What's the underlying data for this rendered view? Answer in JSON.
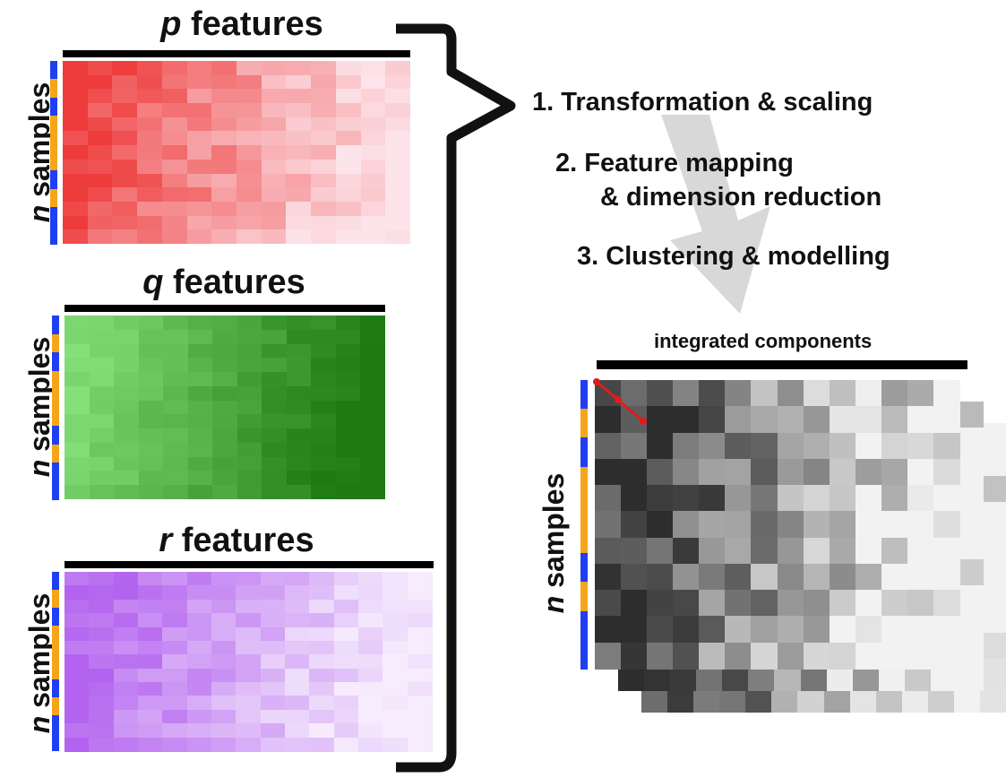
{
  "blocks": [
    {
      "id": "p",
      "var": "p",
      "label": " features",
      "side_var": "n",
      "side_label": " samples",
      "color_from": "#ee3b3b",
      "color_to": "#fce4ea"
    },
    {
      "id": "q",
      "var": "q",
      "label": " features",
      "side_var": "n",
      "side_label": " samples",
      "color_from": "#86e07a",
      "color_to": "#1f7a12"
    },
    {
      "id": "r",
      "var": "r",
      "label": " features",
      "side_var": "n",
      "side_label": " samples",
      "color_from": "#b363ef",
      "color_to": "#f6ecfd"
    }
  ],
  "steps": [
    {
      "number": "1.",
      "text": "Transformation & scaling",
      "cont": ""
    },
    {
      "number": "2.",
      "text": "Feature mapping",
      "cont": "& dimension reduction"
    },
    {
      "number": "3.",
      "text": "Clustering & modelling",
      "cont": ""
    }
  ],
  "integrated": {
    "title": "integrated components",
    "side_var": "n",
    "side_label": " samples",
    "color_dark": "#2d2d2d",
    "color_light": "#f2f2f2"
  },
  "colors": {
    "strip_blue": "#1f3ff0",
    "strip_orange": "#f5a51a",
    "arrow": "#d8d8d8",
    "brace": "#111111",
    "marker": "#e01b1b"
  }
}
